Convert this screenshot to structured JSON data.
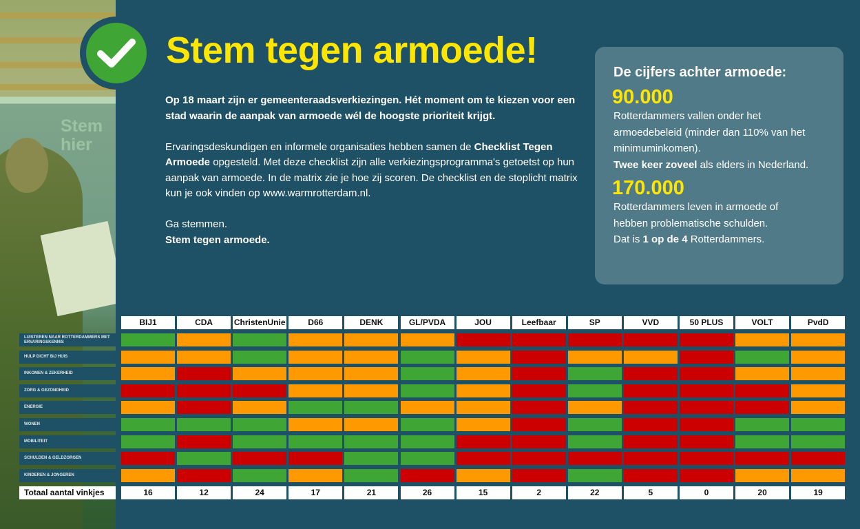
{
  "photo": {
    "watermark": "Stem hier"
  },
  "title": "Stem tegen armoede!",
  "intro": {
    "p1_bold": "Op 18 maart zijn er gemeenteraadsverkiezingen. Hét moment om te kiezen voor een stad waarin de aanpak van armoede wél de hoogste prioriteit krijgt.",
    "p2_a": "Ervaringsdeskundigen en informele organisaties hebben samen de ",
    "p2_bold": "Checklist Tegen Armoede",
    "p2_b": " opgesteld. Met deze checklist zijn alle verkiezingsprogramma's getoetst op hun aanpak van armoede. In de matrix zie je hoe zij scoren. De checklist en de stoplicht matrix kun je ook vinden op www.warmrotterdam.nl.",
    "p3_a": "Ga stemmen.",
    "p3_bold": "Stem tegen armoede."
  },
  "stats": {
    "heading": "De cijfers achter armoede:",
    "n1": "90.000",
    "t1_a": "Rotterdammers vallen onder het armoedebeleid (minder dan 110% van het minimuminkomen).",
    "t1_bold": "Twee keer zoveel",
    "t1_b": " als elders in Nederland.",
    "n2": "170.000",
    "t2_a": "Rotterdammers leven in armoede of hebben problematische schulden.",
    "t2_pre": "Dat is ",
    "t2_bold": "1 op de 4",
    "t2_post": " Rotterdammers."
  },
  "colors": {
    "g": "#3fa535",
    "o": "#ff9900",
    "r": "#cc0000",
    "background": "#1e5166",
    "accent": "#ffe600"
  },
  "matrix": {
    "parties": [
      "BIJ1",
      "CDA",
      "ChristenUnie",
      "D66",
      "DENK",
      "GL/PVDA",
      "JOU",
      "Leefbaar",
      "SP",
      "VVD",
      "50 PLUS",
      "VOLT",
      "PvdD"
    ],
    "rows": [
      {
        "label": "LUISTEREN NAAR ROTTERDAMMERS MET ERVARINGSKENNIS",
        "scores": "gogooorrrrroo"
      },
      {
        "label": "HULP DICHT BIJ HUIS",
        "scores": "oogoogoroorgo"
      },
      {
        "label": "INKOMEN & ZEKERHEID",
        "scores": "orooogorgrroo"
      },
      {
        "label": "ZORG & GEZONDHEID",
        "scores": "rrroogorgrrro"
      },
      {
        "label": "ENERGIE",
        "scores": "oroggoororrro"
      },
      {
        "label": "WONEN",
        "scores": "gggoogorgrrgg"
      },
      {
        "label": "MOBILITEIT",
        "scores": "grggggrrgrrgg"
      },
      {
        "label": "SCHULDEN & GELDZORGEN",
        "scores": "rgrrggrrrrrrr"
      },
      {
        "label": "KINDEREN & JONGEREN",
        "scores": "orgogrorgrroo"
      }
    ],
    "total_label": "Totaal aantal vinkjes",
    "totals": [
      "16",
      "12",
      "24",
      "17",
      "21",
      "26",
      "15",
      "2",
      "22",
      "5",
      "0",
      "20",
      "19"
    ]
  }
}
